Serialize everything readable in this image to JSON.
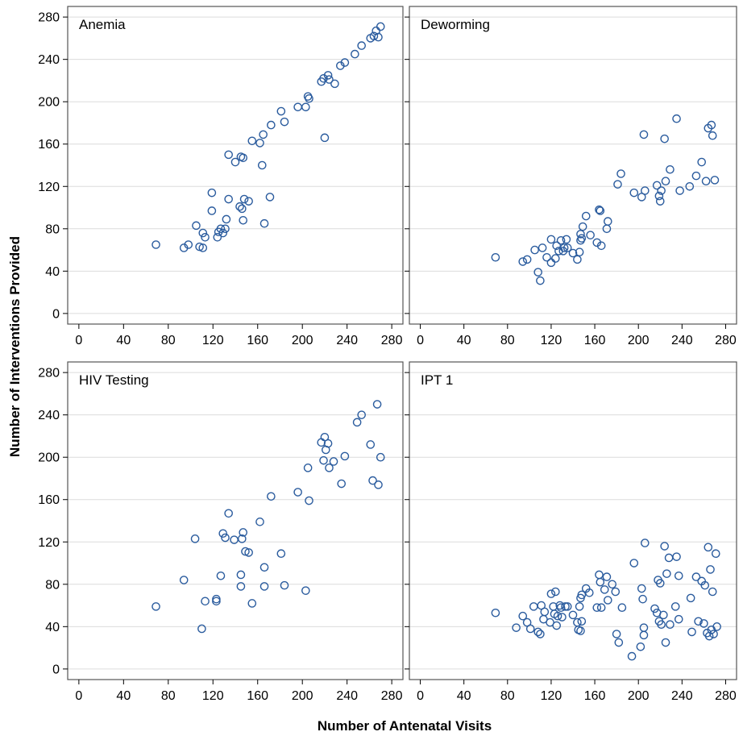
{
  "figure": {
    "xlabel": "Number of Antenatal Visits",
    "ylabel": "Number of Interventions Provided"
  },
  "colors": {
    "marker": "#2b5c9e",
    "grid": "#dcdcdc",
    "frame": "#555555"
  },
  "chart_data": [
    {
      "type": "scatter",
      "title": "Anemia",
      "xlim": [
        -10,
        290
      ],
      "ylim": [
        -10,
        290
      ],
      "xticks": [
        0,
        40,
        80,
        120,
        160,
        200,
        240,
        280
      ],
      "yticks": [
        0,
        40,
        80,
        120,
        160,
        200,
        240,
        280
      ],
      "grid": true,
      "points": [
        [
          69,
          65
        ],
        [
          94,
          62
        ],
        [
          98,
          65
        ],
        [
          105,
          83
        ],
        [
          108,
          63
        ],
        [
          111,
          62
        ],
        [
          111,
          76
        ],
        [
          113,
          72
        ],
        [
          119,
          114
        ],
        [
          119,
          97
        ],
        [
          124,
          72
        ],
        [
          125,
          77
        ],
        [
          127,
          80
        ],
        [
          129,
          76
        ],
        [
          131,
          80
        ],
        [
          132,
          89
        ],
        [
          134,
          150
        ],
        [
          134,
          108
        ],
        [
          140,
          143
        ],
        [
          144,
          101
        ],
        [
          145,
          148
        ],
        [
          146,
          99
        ],
        [
          147,
          88
        ],
        [
          147,
          147
        ],
        [
          148,
          108
        ],
        [
          152,
          106
        ],
        [
          155,
          163
        ],
        [
          162,
          161
        ],
        [
          164,
          140
        ],
        [
          165,
          169
        ],
        [
          166,
          85
        ],
        [
          171,
          110
        ],
        [
          172,
          178
        ],
        [
          181,
          191
        ],
        [
          184,
          181
        ],
        [
          196,
          195
        ],
        [
          203,
          195
        ],
        [
          205,
          205
        ],
        [
          206,
          203
        ],
        [
          217,
          219
        ],
        [
          219,
          222
        ],
        [
          220,
          166
        ],
        [
          223,
          225
        ],
        [
          224,
          221
        ],
        [
          229,
          217
        ],
        [
          234,
          234
        ],
        [
          238,
          237
        ],
        [
          247,
          245
        ],
        [
          253,
          253
        ],
        [
          261,
          260
        ],
        [
          264,
          262
        ],
        [
          266,
          267
        ],
        [
          268,
          261
        ],
        [
          270,
          271
        ]
      ]
    },
    {
      "type": "scatter",
      "title": "Deworming",
      "xlim": [
        -10,
        290
      ],
      "ylim": [
        -10,
        290
      ],
      "xticks": [
        0,
        40,
        80,
        120,
        160,
        200,
        240,
        280
      ],
      "yticks": [
        0,
        40,
        80,
        120,
        160,
        200,
        240,
        280
      ],
      "grid": true,
      "points": [
        [
          69,
          53
        ],
        [
          94,
          49
        ],
        [
          98,
          51
        ],
        [
          105,
          60
        ],
        [
          108,
          39
        ],
        [
          110,
          31
        ],
        [
          112,
          62
        ],
        [
          116,
          53
        ],
        [
          120,
          70
        ],
        [
          120,
          48
        ],
        [
          124,
          52
        ],
        [
          125,
          64
        ],
        [
          127,
          59
        ],
        [
          129,
          69
        ],
        [
          131,
          59
        ],
        [
          132,
          62
        ],
        [
          134,
          70
        ],
        [
          135,
          62
        ],
        [
          140,
          57
        ],
        [
          144,
          51
        ],
        [
          146,
          58
        ],
        [
          147,
          75
        ],
        [
          147,
          69
        ],
        [
          148,
          71
        ],
        [
          149,
          82
        ],
        [
          152,
          92
        ],
        [
          156,
          74
        ],
        [
          162,
          67
        ],
        [
          164,
          98
        ],
        [
          165,
          97
        ],
        [
          166,
          64
        ],
        [
          171,
          80
        ],
        [
          172,
          87
        ],
        [
          181,
          122
        ],
        [
          184,
          132
        ],
        [
          196,
          114
        ],
        [
          203,
          110
        ],
        [
          205,
          169
        ],
        [
          206,
          116
        ],
        [
          217,
          121
        ],
        [
          219,
          111
        ],
        [
          220,
          106
        ],
        [
          221,
          116
        ],
        [
          224,
          165
        ],
        [
          225,
          125
        ],
        [
          229,
          136
        ],
        [
          235,
          184
        ],
        [
          238,
          116
        ],
        [
          247,
          120
        ],
        [
          253,
          130
        ],
        [
          258,
          143
        ],
        [
          262,
          125
        ],
        [
          264,
          175
        ],
        [
          267,
          178
        ],
        [
          268,
          168
        ],
        [
          270,
          126
        ]
      ]
    },
    {
      "type": "scatter",
      "title": "HIV Testing",
      "xlim": [
        -10,
        290
      ],
      "ylim": [
        -10,
        290
      ],
      "xticks": [
        0,
        40,
        80,
        120,
        160,
        200,
        240,
        280
      ],
      "yticks": [
        0,
        40,
        80,
        120,
        160,
        200,
        240,
        280
      ],
      "grid": true,
      "points": [
        [
          69,
          59
        ],
        [
          94,
          84
        ],
        [
          104,
          123
        ],
        [
          110,
          38
        ],
        [
          113,
          64
        ],
        [
          123,
          64
        ],
        [
          123,
          66
        ],
        [
          127,
          88
        ],
        [
          129,
          128
        ],
        [
          131,
          124
        ],
        [
          134,
          147
        ],
        [
          139,
          122
        ],
        [
          145,
          89
        ],
        [
          145,
          78
        ],
        [
          146,
          123
        ],
        [
          147,
          129
        ],
        [
          149,
          111
        ],
        [
          152,
          110
        ],
        [
          155,
          62
        ],
        [
          162,
          139
        ],
        [
          166,
          78
        ],
        [
          166,
          96
        ],
        [
          172,
          163
        ],
        [
          181,
          109
        ],
        [
          184,
          79
        ],
        [
          196,
          167
        ],
        [
          203,
          74
        ],
        [
          205,
          190
        ],
        [
          206,
          159
        ],
        [
          217,
          214
        ],
        [
          219,
          197
        ],
        [
          220,
          219
        ],
        [
          221,
          207
        ],
        [
          223,
          213
        ],
        [
          224,
          190
        ],
        [
          228,
          196
        ],
        [
          235,
          175
        ],
        [
          238,
          201
        ],
        [
          249,
          233
        ],
        [
          253,
          240
        ],
        [
          261,
          212
        ],
        [
          263,
          178
        ],
        [
          267,
          250
        ],
        [
          268,
          174
        ],
        [
          270,
          200
        ]
      ]
    },
    {
      "type": "scatter",
      "title": "IPT 1",
      "xlim": [
        -10,
        290
      ],
      "ylim": [
        -10,
        290
      ],
      "xticks": [
        0,
        40,
        80,
        120,
        160,
        200,
        240,
        280
      ],
      "yticks": [
        0,
        40,
        80,
        120,
        160,
        200,
        240,
        280
      ],
      "grid": true,
      "points": [
        [
          69,
          53
        ],
        [
          88,
          39
        ],
        [
          94,
          50
        ],
        [
          98,
          44
        ],
        [
          101,
          38
        ],
        [
          104,
          59
        ],
        [
          108,
          35
        ],
        [
          110,
          33
        ],
        [
          111,
          60
        ],
        [
          113,
          47
        ],
        [
          114,
          54
        ],
        [
          119,
          44
        ],
        [
          120,
          71
        ],
        [
          122,
          59
        ],
        [
          123,
          52
        ],
        [
          124,
          73
        ],
        [
          125,
          41
        ],
        [
          126,
          50
        ],
        [
          128,
          60
        ],
        [
          129,
          58
        ],
        [
          130,
          49
        ],
        [
          133,
          59
        ],
        [
          135,
          59
        ],
        [
          140,
          51
        ],
        [
          144,
          44
        ],
        [
          145,
          37
        ],
        [
          146,
          59
        ],
        [
          147,
          36
        ],
        [
          147,
          67
        ],
        [
          148,
          70
        ],
        [
          148,
          45
        ],
        [
          152,
          76
        ],
        [
          155,
          72
        ],
        [
          162,
          58
        ],
        [
          164,
          89
        ],
        [
          165,
          82
        ],
        [
          166,
          58
        ],
        [
          169,
          75
        ],
        [
          171,
          87
        ],
        [
          172,
          65
        ],
        [
          176,
          80
        ],
        [
          179,
          73
        ],
        [
          180,
          33
        ],
        [
          182,
          25
        ],
        [
          185,
          58
        ],
        [
          194,
          12
        ],
        [
          196,
          100
        ],
        [
          202,
          21
        ],
        [
          203,
          76
        ],
        [
          204,
          66
        ],
        [
          205,
          39
        ],
        [
          205,
          32
        ],
        [
          206,
          119
        ],
        [
          215,
          57
        ],
        [
          217,
          53
        ],
        [
          218,
          84
        ],
        [
          219,
          45
        ],
        [
          220,
          81
        ],
        [
          221,
          42
        ],
        [
          223,
          51
        ],
        [
          224,
          116
        ],
        [
          225,
          25
        ],
        [
          226,
          90
        ],
        [
          228,
          105
        ],
        [
          229,
          42
        ],
        [
          234,
          59
        ],
        [
          235,
          106
        ],
        [
          237,
          88
        ],
        [
          237,
          47
        ],
        [
          248,
          67
        ],
        [
          249,
          35
        ],
        [
          253,
          87
        ],
        [
          255,
          45
        ],
        [
          258,
          83
        ],
        [
          260,
          43
        ],
        [
          261,
          79
        ],
        [
          263,
          34
        ],
        [
          264,
          115
        ],
        [
          265,
          31
        ],
        [
          266,
          94
        ],
        [
          267,
          37
        ],
        [
          268,
          73
        ],
        [
          269,
          33
        ],
        [
          271,
          109
        ],
        [
          272,
          40
        ]
      ]
    }
  ]
}
